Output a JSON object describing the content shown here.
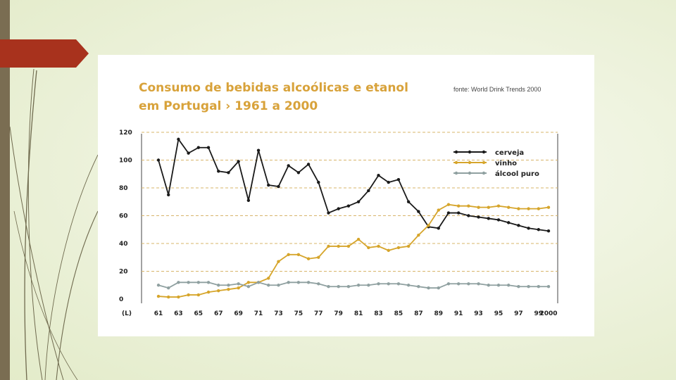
{
  "colors": {
    "cerveja": "#1a1a1a",
    "vinho": "#d6a52b",
    "alcool": "#8fa0a0",
    "title": "#d8a23a",
    "accent_tab": "#a8321d",
    "left_bar": "#7a6d52",
    "grid": "#d7b46a"
  },
  "icons": [
    "slide-accent-tab",
    "decorative-curves"
  ],
  "chart_data": {
    "type": "line",
    "title_line1": "Consumo de bebidas alcoólicas e etanol",
    "title_line2": "em Portugal › 1961 a 2000",
    "source": "fonte: World Drink Trends 2000",
    "ylabel": "(L)",
    "ylim": [
      0,
      120
    ],
    "yticks": [
      0,
      20,
      40,
      60,
      80,
      100,
      120
    ],
    "xlim": [
      1961,
      2000
    ],
    "xtick_labels": [
      "61",
      "63",
      "65",
      "67",
      "69",
      "71",
      "73",
      "75",
      "77",
      "79",
      "81",
      "83",
      "85",
      "87",
      "89",
      "91",
      "93",
      "95",
      "97",
      "99",
      "2000"
    ],
    "xtick_years": [
      1961,
      1963,
      1965,
      1967,
      1969,
      1971,
      1973,
      1975,
      1977,
      1979,
      1981,
      1983,
      1985,
      1987,
      1989,
      1991,
      1993,
      1995,
      1997,
      1999,
      2000
    ],
    "grid": "horizontal dashed",
    "legend_position": "top-right",
    "x": [
      1961,
      1962,
      1963,
      1964,
      1965,
      1966,
      1967,
      1968,
      1969,
      1970,
      1971,
      1972,
      1973,
      1974,
      1975,
      1976,
      1977,
      1978,
      1979,
      1980,
      1981,
      1982,
      1983,
      1984,
      1985,
      1986,
      1987,
      1988,
      1989,
      1990,
      1991,
      1992,
      1993,
      1994,
      1995,
      1996,
      1997,
      1998,
      1999,
      2000
    ],
    "series": [
      {
        "key": "cerveja",
        "name": "cerveja",
        "values": [
          100,
          75,
          115,
          105,
          109,
          109,
          92,
          91,
          99,
          71,
          107,
          82,
          81,
          96,
          91,
          97,
          84,
          62,
          65,
          67,
          70,
          78,
          89,
          84,
          86,
          70,
          63,
          52,
          51,
          62,
          62,
          60,
          59,
          58,
          57,
          55,
          53,
          51,
          50,
          49
        ]
      },
      {
        "key": "vinho",
        "name": "vinho",
        "values": [
          2,
          1.5,
          1.5,
          3,
          3,
          5,
          6,
          7,
          8,
          12,
          12,
          15,
          27,
          32,
          32,
          29,
          30,
          38,
          38,
          38,
          43,
          37,
          38,
          35,
          37,
          38,
          46,
          53,
          64,
          68,
          67,
          67,
          66,
          66,
          67,
          66,
          65,
          65,
          65,
          66
        ]
      },
      {
        "key": "alcool",
        "name": "álcool puro",
        "values": [
          10,
          8,
          12,
          12,
          12,
          12,
          10,
          10,
          11,
          9,
          12,
          10,
          10,
          12,
          12,
          12,
          11,
          9,
          9,
          9,
          10,
          10,
          11,
          11,
          11,
          10,
          9,
          8,
          8,
          11,
          11,
          11,
          11,
          10,
          10,
          10,
          9,
          9,
          9,
          9
        ]
      }
    ]
  }
}
